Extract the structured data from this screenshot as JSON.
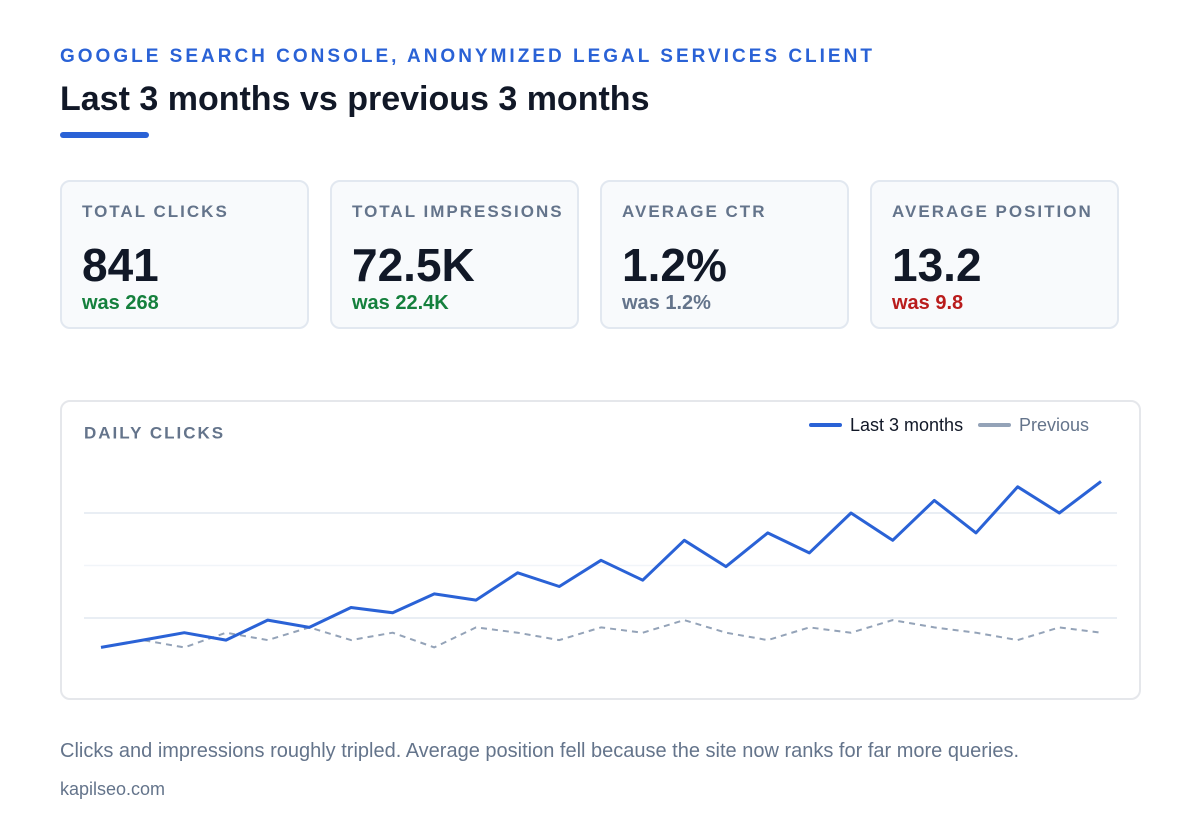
{
  "header": {
    "eyebrow": "GOOGLE SEARCH CONSOLE, ANONYMIZED LEGAL SERVICES CLIENT",
    "title": "Last 3 months vs previous 3 months"
  },
  "metrics": [
    {
      "label": "TOTAL CLICKS",
      "value": "841",
      "previous": "was 268",
      "color": "#15803d"
    },
    {
      "label": "TOTAL IMPRESSIONS",
      "value": "72.5K",
      "previous": "was 22.4K",
      "color": "#15803d"
    },
    {
      "label": "AVERAGE CTR",
      "value": "1.2%",
      "previous": "was 1.2%",
      "color": "#64748b"
    },
    {
      "label": "AVERAGE POSITION",
      "value": "13.2",
      "previous": "was 9.8",
      "color": "#b91c1c"
    }
  ],
  "chart_data": {
    "type": "line",
    "title": "DAILY CLICKS",
    "categories": [
      null,
      null,
      null,
      null,
      null,
      null,
      null,
      null,
      null,
      null,
      null,
      null,
      null,
      null,
      null,
      null,
      null,
      null,
      null,
      null,
      null,
      null,
      null,
      null,
      null
    ],
    "series": [
      {
        "name": "Last 3 months",
        "color": "#2a62d6",
        "dashed": false,
        "values": [
          2.2,
          2.9,
          3.6,
          2.9,
          4.8,
          4.1,
          6.0,
          5.5,
          7.3,
          6.7,
          9.3,
          8.0,
          10.5,
          8.6,
          12.4,
          9.9,
          13.1,
          11.2,
          15.0,
          12.4,
          16.2,
          13.1,
          17.5,
          15.0,
          18.0
        ]
      },
      {
        "name": "Previous",
        "color": "#94a3b8",
        "dashed": true,
        "values": [
          2.2,
          2.9,
          2.2,
          3.6,
          2.9,
          4.1,
          2.9,
          3.6,
          2.2,
          4.1,
          3.6,
          2.9,
          4.1,
          3.6,
          4.8,
          3.6,
          2.9,
          4.1,
          3.6,
          4.8,
          4.1,
          3.6,
          2.9,
          4.1,
          3.6
        ]
      }
    ],
    "ylim": [
      0,
      20
    ],
    "yticks": [
      5,
      10,
      15
    ],
    "grid": true,
    "legend": "top-right"
  },
  "footer": {
    "note": "Clicks and impressions roughly tripled. Average position fell because the site now ranks for far more queries.",
    "source": "kapilseo.com"
  }
}
